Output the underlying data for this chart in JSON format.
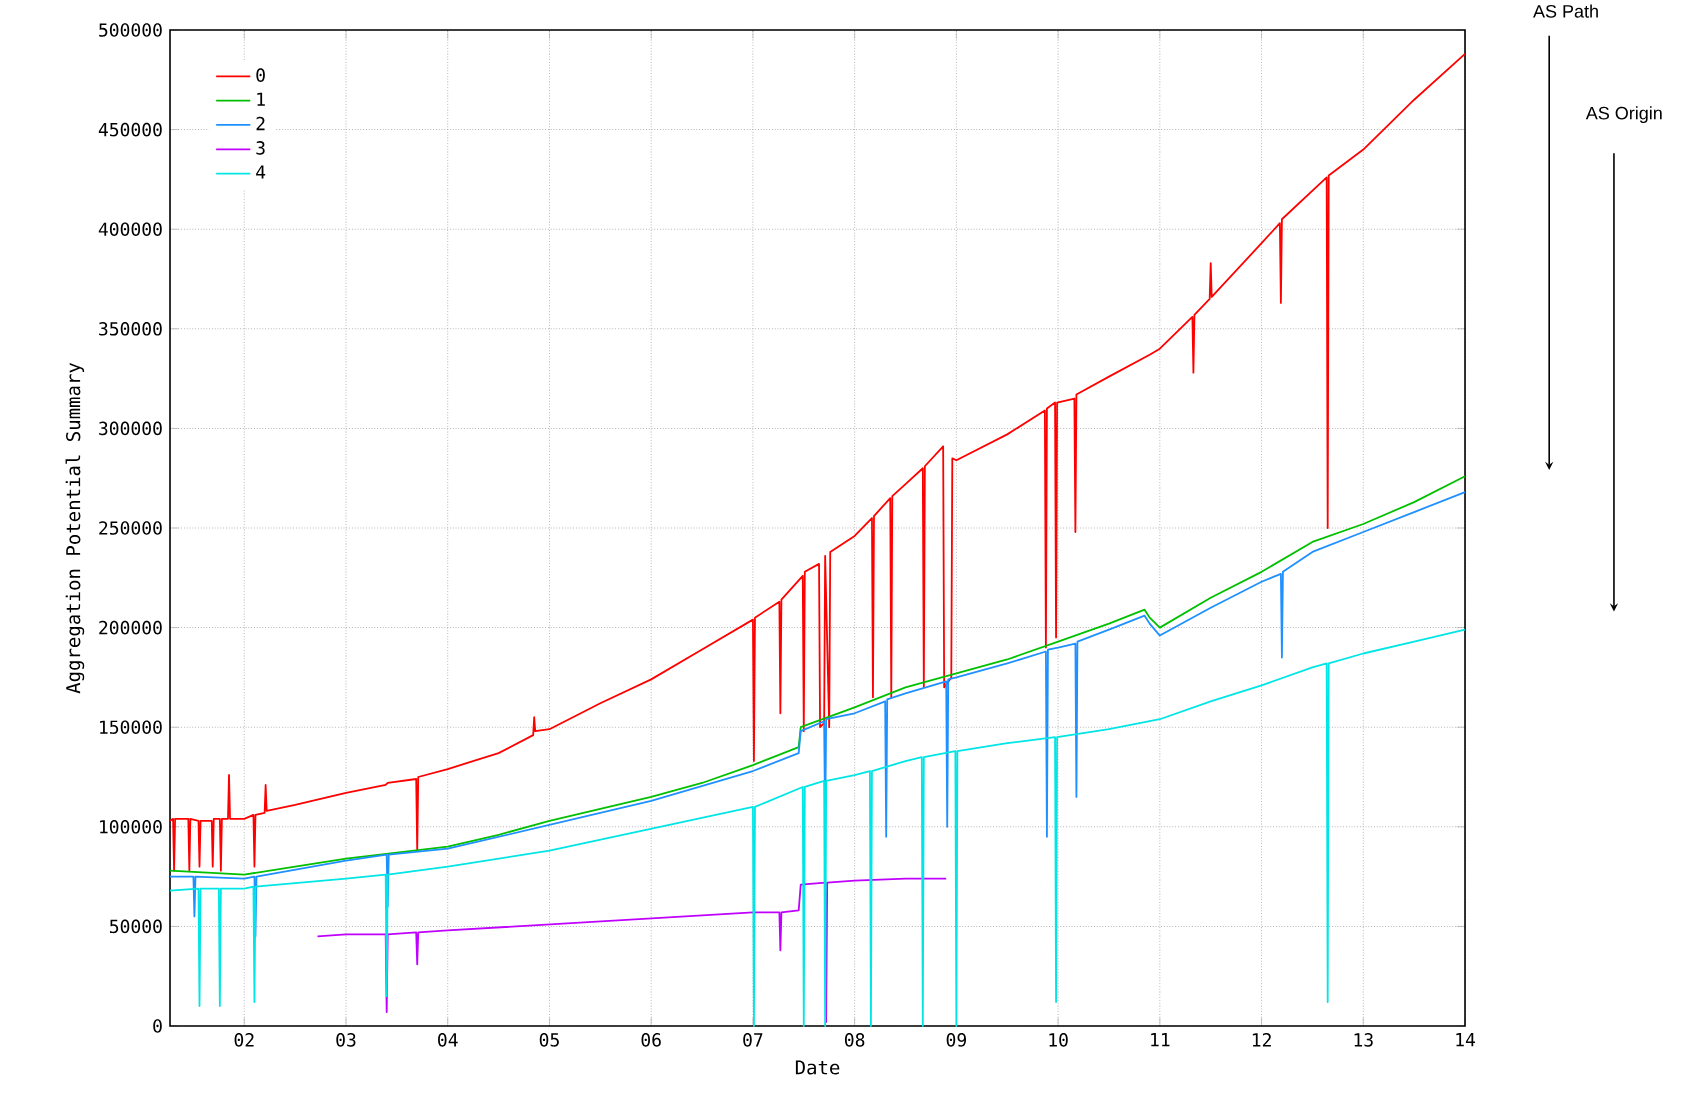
{
  "chart_data": {
    "type": "line",
    "xlabel": "Date",
    "ylabel": "Aggregation Potential Summary",
    "xlim": [
      1.27,
      14
    ],
    "ylim": [
      0,
      500000
    ],
    "xticks": [
      {
        "value": 2,
        "label": "02"
      },
      {
        "value": 3,
        "label": "03"
      },
      {
        "value": 4,
        "label": "04"
      },
      {
        "value": 5,
        "label": "05"
      },
      {
        "value": 6,
        "label": "06"
      },
      {
        "value": 7,
        "label": "07"
      },
      {
        "value": 8,
        "label": "08"
      },
      {
        "value": 9,
        "label": "09"
      },
      {
        "value": 10,
        "label": "10"
      },
      {
        "value": 11,
        "label": "11"
      },
      {
        "value": 12,
        "label": "12"
      },
      {
        "value": 13,
        "label": "13"
      },
      {
        "value": 14,
        "label": "14"
      }
    ],
    "yticks": [
      0,
      50000,
      100000,
      150000,
      200000,
      250000,
      300000,
      350000,
      400000,
      450000,
      500000
    ],
    "grid": true,
    "legend": "top left",
    "marker": "none",
    "line_style": "solid",
    "annotations": [
      "AS Path",
      "AS Origin"
    ],
    "series": [
      {
        "name": "0",
        "color": "#ff0000",
        "x": [
          1.27,
          1.3,
          1.31,
          1.32,
          1.45,
          1.46,
          1.47,
          1.55,
          1.56,
          1.57,
          1.68,
          1.69,
          1.7,
          1.76,
          1.77,
          1.78,
          1.84,
          1.85,
          1.86,
          2.0,
          2.09,
          2.1,
          2.11,
          2.2,
          2.21,
          2.22,
          2.5,
          3.0,
          3.39,
          3.4,
          3.41,
          3.69,
          3.7,
          3.71,
          4.0,
          4.5,
          4.84,
          4.85,
          4.86,
          5.0,
          5.5,
          6.0,
          6.5,
          7.0,
          7.01,
          7.02,
          7.26,
          7.27,
          7.28,
          7.49,
          7.5,
          7.51,
          7.65,
          7.66,
          7.7,
          7.71,
          7.75,
          7.76,
          8.0,
          8.17,
          8.18,
          8.19,
          8.35,
          8.36,
          8.37,
          8.5,
          8.67,
          8.68,
          8.69,
          8.87,
          8.88,
          8.95,
          8.96,
          9.0,
          9.5,
          9.87,
          9.88,
          9.89,
          9.97,
          9.98,
          9.99,
          10.16,
          10.17,
          10.18,
          10.5,
          10.9,
          11.0,
          11.32,
          11.33,
          11.34,
          11.49,
          11.5,
          11.51,
          12.0,
          12.18,
          12.19,
          12.2,
          12.64,
          12.65,
          12.66,
          13.0,
          13.5,
          14.0
        ],
        "values": [
          103000,
          104000,
          78000,
          104000,
          104000,
          78000,
          104000,
          103000,
          80000,
          103000,
          103000,
          80000,
          104000,
          104000,
          78000,
          104000,
          104000,
          126000,
          104000,
          104000,
          106000,
          80000,
          106000,
          107000,
          121000,
          108000,
          111000,
          117000,
          121000,
          null,
          122000,
          124000,
          88000,
          125000,
          129000,
          137000,
          146000,
          155000,
          148000,
          149000,
          162000,
          174000,
          189000,
          204000,
          133000,
          205000,
          213000,
          157000,
          214000,
          226000,
          148000,
          228000,
          232000,
          150000,
          152000,
          236000,
          150000,
          238000,
          246000,
          255000,
          165000,
          256000,
          265000,
          165000,
          266000,
          272000,
          280000,
          170000,
          281000,
          291000,
          170000,
          175000,
          285000,
          284000,
          297000,
          309000,
          190000,
          310000,
          313000,
          195000,
          313000,
          315000,
          248000,
          317000,
          326000,
          337000,
          340000,
          356000,
          328000,
          357000,
          365000,
          383000,
          366000,
          393000,
          403000,
          363000,
          405000,
          426000,
          250000,
          427000,
          440000,
          465000,
          488000
        ]
      },
      {
        "name": "1",
        "color": "#00c000",
        "x": [
          1.27,
          2.0,
          2.5,
          3.0,
          3.5,
          4.0,
          4.5,
          5.0,
          5.5,
          6.0,
          6.5,
          7.0,
          7.45,
          7.47,
          8.0,
          8.5,
          9.0,
          9.5,
          10.0,
          10.5,
          10.85,
          10.9,
          11.0,
          11.5,
          12.0,
          12.5,
          13.0,
          13.5,
          14.0
        ],
        "values": [
          78000,
          76000,
          80000,
          84000,
          87000,
          90000,
          96000,
          103000,
          109000,
          115000,
          122000,
          131000,
          140000,
          150000,
          160000,
          170000,
          177000,
          184000,
          193000,
          202000,
          209000,
          205000,
          200000,
          215000,
          228000,
          243000,
          252000,
          263000,
          276000
        ]
      },
      {
        "name": "2",
        "color": "#1e90ff",
        "x": [
          1.27,
          1.5,
          1.51,
          1.52,
          2.0,
          2.1,
          2.11,
          2.12,
          3.0,
          3.4,
          3.41,
          3.42,
          4.0,
          5.0,
          6.0,
          7.0,
          7.45,
          7.47,
          7.7,
          7.71,
          7.72,
          8.0,
          8.3,
          8.31,
          8.32,
          8.5,
          8.9,
          8.91,
          8.92,
          9.0,
          9.5,
          9.88,
          9.89,
          9.9,
          10.0,
          10.17,
          10.18,
          10.19,
          10.5,
          10.85,
          10.9,
          11.0,
          11.5,
          12.0,
          12.19,
          12.2,
          12.21,
          12.5,
          13.0,
          13.5,
          14.0
        ],
        "values": [
          75000,
          75000,
          55000,
          75000,
          74000,
          75000,
          45000,
          75000,
          83000,
          86000,
          60000,
          86000,
          89000,
          101000,
          113000,
          128000,
          137000,
          148000,
          153000,
          100000,
          154000,
          157000,
          163000,
          95000,
          164000,
          167000,
          173000,
          100000,
          174000,
          175000,
          182000,
          188000,
          95000,
          189000,
          190000,
          192000,
          115000,
          193000,
          199000,
          206000,
          202000,
          196000,
          210000,
          223000,
          227000,
          185000,
          228000,
          238000,
          248000,
          258000,
          268000
        ]
      },
      {
        "name": "3",
        "color": "#c000ff",
        "x": [
          2.72,
          3.0,
          3.39,
          3.4,
          3.41,
          3.69,
          3.7,
          3.71,
          4.0,
          5.0,
          6.0,
          7.0,
          7.26,
          7.27,
          7.28,
          7.45,
          7.47,
          7.71,
          7.72,
          7.73,
          8.0,
          8.5,
          8.9
        ],
        "values": [
          45000,
          46000,
          46000,
          7000,
          46000,
          47000,
          31000,
          47000,
          48000,
          51000,
          54000,
          57000,
          57000,
          38000,
          57000,
          58000,
          71000,
          72000,
          2000,
          72000,
          73000,
          74000,
          74000
        ]
      },
      {
        "name": "4",
        "color": "#00e5e5",
        "x": [
          1.27,
          1.55,
          1.56,
          1.57,
          1.75,
          1.76,
          1.77,
          2.0,
          2.09,
          2.1,
          2.11,
          3.0,
          3.39,
          3.4,
          3.41,
          4.0,
          5.0,
          6.0,
          7.0,
          7.01,
          7.02,
          7.49,
          7.5,
          7.51,
          7.7,
          7.71,
          7.72,
          8.0,
          8.15,
          8.16,
          8.17,
          8.5,
          8.66,
          8.67,
          8.68,
          8.99,
          9.0,
          9.01,
          9.5,
          9.97,
          9.98,
          9.99,
          10.5,
          11.0,
          11.5,
          12.0,
          12.5,
          12.64,
          12.65,
          12.66,
          13.0,
          13.5,
          14.0
        ],
        "values": [
          68000,
          69000,
          10000,
          69000,
          69000,
          10000,
          69000,
          69000,
          70000,
          12000,
          70000,
          74000,
          76000,
          15000,
          76000,
          80000,
          88000,
          99000,
          110000,
          0,
          110000,
          120000,
          0,
          120000,
          123000,
          0,
          123000,
          126000,
          128000,
          0,
          128000,
          133000,
          135000,
          0,
          135000,
          138000,
          0,
          138000,
          142000,
          145000,
          12000,
          145000,
          149000,
          154000,
          163000,
          171000,
          180000,
          182000,
          12000,
          182000,
          187000,
          193000,
          199000
        ]
      }
    ]
  }
}
